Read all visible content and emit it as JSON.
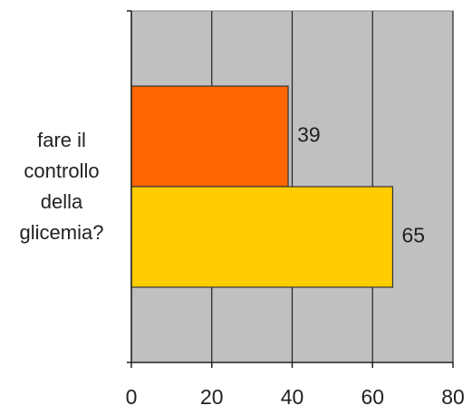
{
  "chart_data": {
    "type": "hbar",
    "categories": [
      "fare il controllo della glicemia?"
    ],
    "series": [
      {
        "color": "#ff6600",
        "values": [
          39
        ]
      },
      {
        "color": "#ffcc00",
        "values": [
          65
        ]
      }
    ],
    "xlim": [
      0,
      80
    ],
    "xticks": [
      0,
      20,
      40,
      60,
      80
    ],
    "grid": true,
    "plot_background": "#c0c0c0"
  }
}
